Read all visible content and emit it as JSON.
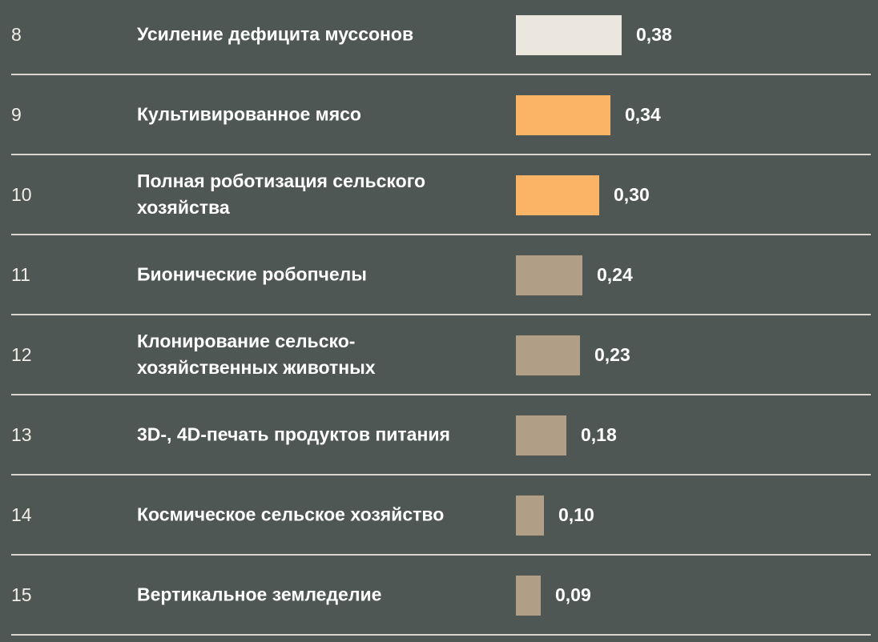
{
  "chart_data": {
    "type": "bar",
    "orientation": "horizontal",
    "rows": [
      {
        "rank": "8",
        "label": "Усиление дефицита муссонов",
        "value": 0.38,
        "value_label": "0,38",
        "color": "#ebe7de"
      },
      {
        "rank": "9",
        "label": "Культивированное мясо",
        "value": 0.34,
        "value_label": "0,34",
        "color": "#fbb466"
      },
      {
        "rank": "10",
        "label": "Полная роботизация сельского хозяйства",
        "value": 0.3,
        "value_label": "0,30",
        "color": "#fbb466"
      },
      {
        "rank": "11",
        "label": "Бионические робопчелы",
        "value": 0.24,
        "value_label": "0,24",
        "color": "#b09f86"
      },
      {
        "rank": "12",
        "label": "Клонирование сельско-хозяйственных животных",
        "value": 0.23,
        "value_label": "0,23",
        "color": "#b09f86"
      },
      {
        "rank": "13",
        "label": "3D-, 4D-печать продуктов питания",
        "value": 0.18,
        "value_label": "0,18",
        "color": "#b09f86"
      },
      {
        "rank": "14",
        "label": "Космическое сельское хозяйство",
        "value": 0.1,
        "value_label": "0,10",
        "color": "#b09f86"
      },
      {
        "rank": "15",
        "label": "Вертикальное земледелие",
        "value": 0.09,
        "value_label": "0,09",
        "color": "#b09f86"
      }
    ]
  },
  "colors": {
    "background": "#4f5755",
    "divider": "#d9d7d2",
    "text": "#ffffff"
  }
}
